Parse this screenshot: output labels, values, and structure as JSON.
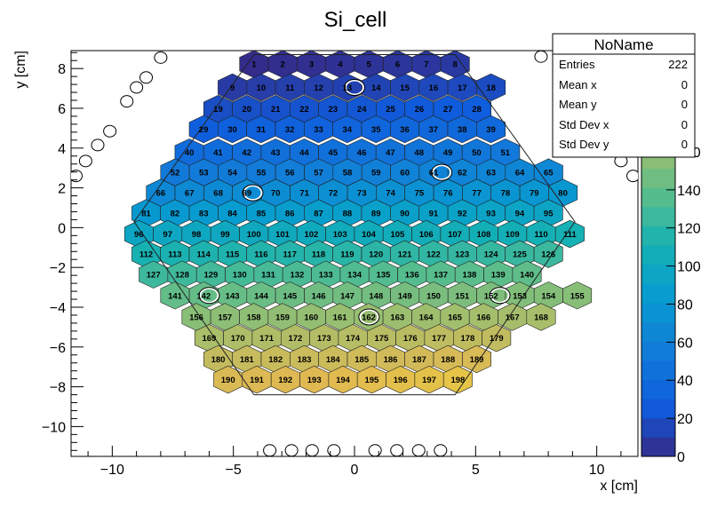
{
  "chart_data": {
    "type": "heatmap",
    "title": "Si_cell",
    "xlabel": "x [cm]",
    "ylabel": "y [cm]",
    "xlim": [
      -11.7,
      11.7
    ],
    "ylim": [
      -11.5,
      8.9
    ],
    "zlim": [
      0,
      222
    ],
    "x_ticks": [
      -10,
      -5,
      0,
      5,
      10
    ],
    "x_tick_labels": [
      "−10",
      "−5",
      "0",
      "5",
      "10"
    ],
    "y_ticks": [
      -10,
      -8,
      -6,
      -4,
      -2,
      0,
      2,
      4,
      6,
      8
    ],
    "y_tick_labels": [
      "−10",
      "−8",
      "−6",
      "−4",
      "−2",
      "0",
      "2",
      "4",
      "6",
      "8"
    ],
    "z_ticks": [
      0,
      20,
      40,
      60,
      80,
      100,
      120,
      140,
      160
    ],
    "z_tick_labels": [
      "0",
      "20",
      "40",
      "60",
      "80",
      "100",
      "120",
      "140",
      "160"
    ],
    "hex_pitch_cm": 1.186,
    "rows": [
      {
        "y": 8.22,
        "first": 1,
        "last": 8,
        "xstart": -4.15
      },
      {
        "y": 7.05,
        "first": 9,
        "last": 18,
        "xstart": -5.04
      },
      {
        "y": 5.97,
        "first": 19,
        "last": 28,
        "xstart": -5.63
      },
      {
        "y": 4.95,
        "first": 29,
        "last": 39,
        "xstart": -6.23
      },
      {
        "y": 3.78,
        "first": 40,
        "last": 51,
        "xstart": -6.82
      },
      {
        "y": 2.78,
        "first": 52,
        "last": 65,
        "xstart": -7.41
      },
      {
        "y": 1.75,
        "first": 66,
        "last": 80,
        "xstart": -8.0
      },
      {
        "y": 0.73,
        "first": 81,
        "last": 95,
        "xstart": -8.6
      },
      {
        "y": -0.32,
        "first": 96,
        "last": 111,
        "xstart": -8.9
      },
      {
        "y": -1.33,
        "first": 112,
        "last": 126,
        "xstart": -8.6
      },
      {
        "y": -2.36,
        "first": 127,
        "last": 140,
        "xstart": -8.3
      },
      {
        "y": -3.41,
        "first": 141,
        "last": 155,
        "xstart": -7.41
      },
      {
        "y": -4.49,
        "first": 156,
        "last": 168,
        "xstart": -6.53
      },
      {
        "y": -5.55,
        "first": 169,
        "last": 179,
        "xstart": -6.0
      },
      {
        "y": -6.61,
        "first": 180,
        "last": 189,
        "xstart": -5.63
      },
      {
        "y": -7.64,
        "first": 190,
        "last": 198,
        "xstart": -5.22
      }
    ],
    "hexagon_outline": [
      [
        -4.15,
        8.7
      ],
      [
        4.15,
        8.7
      ],
      [
        9.1,
        0.3
      ],
      [
        4.15,
        -8.4
      ],
      [
        -4.15,
        -8.4
      ],
      [
        -9.1,
        0.3
      ]
    ],
    "marked_cells": [
      {
        "x": 0.0,
        "y": 7.05
      },
      {
        "x": 3.6,
        "y": 2.78
      },
      {
        "x": -4.2,
        "y": 1.75
      },
      {
        "x": -6.0,
        "y": -3.41
      },
      {
        "x": 6.0,
        "y": -3.41
      },
      {
        "x": 0.6,
        "y": -4.49
      }
    ],
    "open_circles": [
      {
        "x": -8.0,
        "y": 8.55
      },
      {
        "x": -8.6,
        "y": 7.55
      },
      {
        "x": -9.0,
        "y": 7.05
      },
      {
        "x": -9.4,
        "y": 6.35
      },
      {
        "x": -10.1,
        "y": 4.85
      },
      {
        "x": -10.6,
        "y": 4.15
      },
      {
        "x": -11.1,
        "y": 3.35
      },
      {
        "x": -11.5,
        "y": 2.6
      },
      {
        "x": 7.7,
        "y": 8.6
      },
      {
        "x": 11.0,
        "y": 3.35
      },
      {
        "x": 11.5,
        "y": 2.6
      },
      {
        "x": -3.5,
        "y": -11.2
      },
      {
        "x": -2.6,
        "y": -11.2
      },
      {
        "x": -1.75,
        "y": -11.2
      },
      {
        "x": -0.85,
        "y": -11.2
      },
      {
        "x": 0.85,
        "y": -11.2
      },
      {
        "x": 1.75,
        "y": -11.2
      },
      {
        "x": 2.65,
        "y": -11.2
      },
      {
        "x": 3.55,
        "y": -11.2
      }
    ]
  },
  "stats_box": {
    "title": "NoName",
    "entries_label": "Entries",
    "entries_value": "222",
    "meanx_label": "Mean x",
    "meanx_value": "0",
    "meany_label": "Mean y",
    "meany_value": "0",
    "stdx_label": "Std Dev x",
    "stdx_value": "0",
    "stdy_label": "Std Dev y",
    "stdy_value": "0"
  }
}
